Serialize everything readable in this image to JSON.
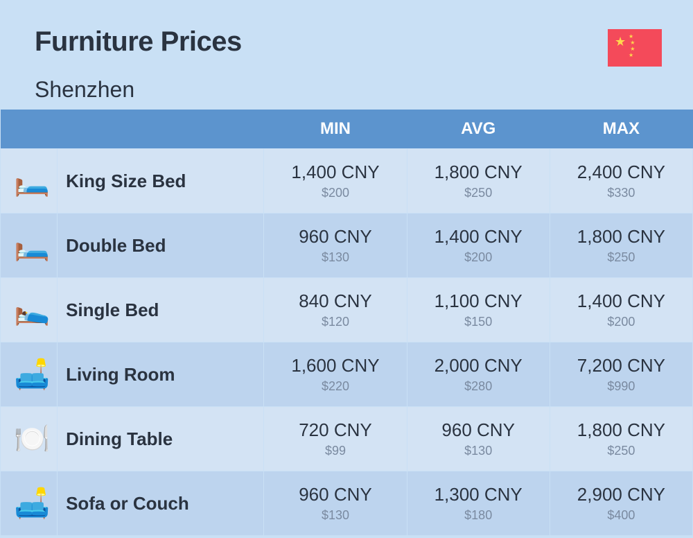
{
  "header": {
    "title": "Furniture Prices",
    "subtitle": "Shenzhen"
  },
  "flag": {
    "background": "#f44a5a",
    "star_color": "#ffd84d"
  },
  "columns": {
    "min": "MIN",
    "avg": "AVG",
    "max": "MAX"
  },
  "rows": [
    {
      "icon": "🛏️",
      "name": "King Size Bed",
      "min": {
        "primary": "1,400 CNY",
        "secondary": "$200"
      },
      "avg": {
        "primary": "1,800 CNY",
        "secondary": "$250"
      },
      "max": {
        "primary": "2,400 CNY",
        "secondary": "$330"
      }
    },
    {
      "icon": "🛏️",
      "name": "Double Bed",
      "min": {
        "primary": "960 CNY",
        "secondary": "$130"
      },
      "avg": {
        "primary": "1,400 CNY",
        "secondary": "$200"
      },
      "max": {
        "primary": "1,800 CNY",
        "secondary": "$250"
      }
    },
    {
      "icon": "🛌",
      "name": "Single Bed",
      "min": {
        "primary": "840 CNY",
        "secondary": "$120"
      },
      "avg": {
        "primary": "1,100 CNY",
        "secondary": "$150"
      },
      "max": {
        "primary": "1,400 CNY",
        "secondary": "$200"
      }
    },
    {
      "icon": "🛋️",
      "name": "Living Room",
      "min": {
        "primary": "1,600 CNY",
        "secondary": "$220"
      },
      "avg": {
        "primary": "2,000 CNY",
        "secondary": "$280"
      },
      "max": {
        "primary": "7,200 CNY",
        "secondary": "$990"
      }
    },
    {
      "icon": "🍽️",
      "name": "Dining Table",
      "min": {
        "primary": "720 CNY",
        "secondary": "$99"
      },
      "avg": {
        "primary": "960 CNY",
        "secondary": "$130"
      },
      "max": {
        "primary": "1,800 CNY",
        "secondary": "$250"
      }
    },
    {
      "icon": "🛋️",
      "name": "Sofa or Couch",
      "min": {
        "primary": "960 CNY",
        "secondary": "$130"
      },
      "avg": {
        "primary": "1,300 CNY",
        "secondary": "$180"
      },
      "max": {
        "primary": "2,900 CNY",
        "secondary": "$400"
      }
    }
  ],
  "style": {
    "page_bg": "#c9e0f5",
    "header_bg": "#5c94ce",
    "header_text": "#ffffff",
    "row_even_bg": "#d3e3f4",
    "row_odd_bg": "#bdd4ee",
    "text_color": "#2a3340",
    "secondary_text": "#7a8aa0",
    "title_fontsize": 40,
    "subtitle_fontsize": 32,
    "col_header_fontsize": 24,
    "name_fontsize": 26,
    "primary_fontsize": 26,
    "secondary_fontsize": 18
  }
}
